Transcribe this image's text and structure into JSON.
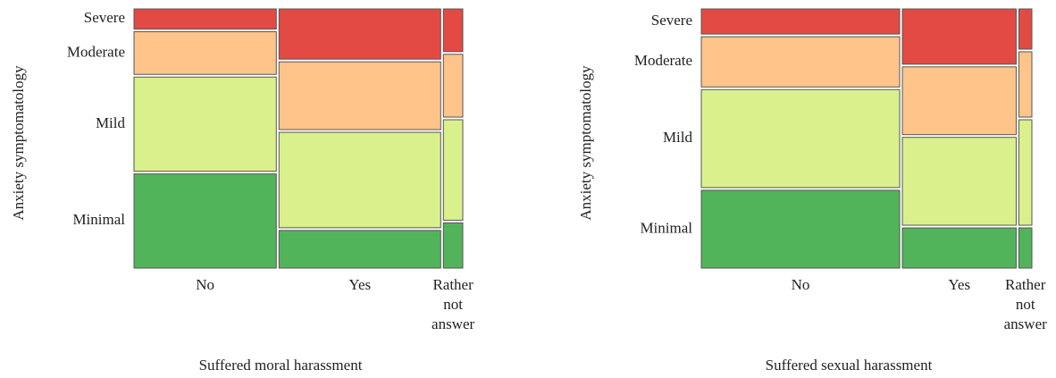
{
  "chart_data": [
    {
      "type": "mosaic",
      "x_label": "Suffered moral harassment",
      "y_label": "Anxiety symptomatology",
      "categories": [
        "No",
        "Yes",
        "Rather not answer"
      ],
      "column_shares": [
        44,
        50,
        6
      ],
      "series": [
        {
          "name": "Severe",
          "color": "#e34a44",
          "values": [
            8,
            20,
            17
          ]
        },
        {
          "name": "Moderate",
          "color": "#fec48a",
          "values": [
            17,
            27,
            25
          ]
        },
        {
          "name": "Mild",
          "color": "#d9f08c",
          "values": [
            37.5,
            38,
            40
          ]
        },
        {
          "name": "Minimal",
          "color": "#52b45a",
          "values": [
            37.5,
            15,
            18
          ]
        }
      ]
    },
    {
      "type": "mosaic",
      "x_label": "Suffered sexual harassment",
      "y_label": "Anxiety symptomatology",
      "categories": [
        "No",
        "Yes",
        "Rather not answer"
      ],
      "column_shares": [
        61,
        35,
        4
      ],
      "series": [
        {
          "name": "Severe",
          "color": "#e34a44",
          "values": [
            10,
            22,
            16
          ]
        },
        {
          "name": "Moderate",
          "color": "#fec48a",
          "values": [
            20,
            27,
            26
          ]
        },
        {
          "name": "Mild",
          "color": "#d9f08c",
          "values": [
            39,
            35,
            42
          ]
        },
        {
          "name": "Minimal",
          "color": "#52b45a",
          "values": [
            31,
            16,
            16
          ]
        }
      ]
    }
  ]
}
